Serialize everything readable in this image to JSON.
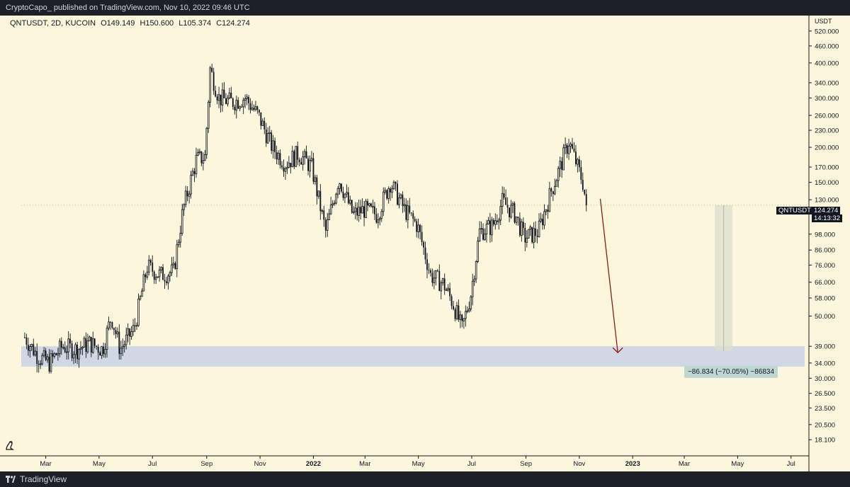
{
  "header": {
    "published": "CryptoCapo_ published on TradingView.com, Nov 10, 2022 09:46 UTC"
  },
  "footer": {
    "brand": "TradingView"
  },
  "legend": {
    "symbol": "QNTUSDT, 2D, KUCOIN",
    "open": "O149.149",
    "high": "H150.600",
    "low": "L105.374",
    "close": "C124.274"
  },
  "price_scale": {
    "currency": "USDT",
    "last_symbol": "QNTUSDT",
    "last_price": "124.274",
    "countdown": "14:13:32"
  },
  "measure": {
    "label": "−86.834 (−70.05%) −86834"
  },
  "colors": {
    "background": "#fcf7dc",
    "candle": "#131722",
    "support_zone": "#c3cfe6",
    "arrow": "#8b1a1a",
    "measure_zone": "#dcdfd0"
  },
  "chart_data": {
    "type": "candlestick",
    "scale": "log",
    "ylim": [
      17,
      570
    ],
    "x_ticks": [
      "Mar",
      "May",
      "Jul",
      "Sep",
      "Nov",
      "2022",
      "Mar",
      "May",
      "Jul",
      "Sep",
      "Nov",
      "2023",
      "Mar",
      "May",
      "Jul"
    ],
    "y_ticks": [
      "520.000",
      "460.000",
      "400.000",
      "340.000",
      "300.000",
      "260.000",
      "230.000",
      "200.000",
      "170.000",
      "150.000",
      "130.000",
      "98.000",
      "86.000",
      "76.000",
      "66.000",
      "58.000",
      "50.000",
      "39.000",
      "34.000",
      "30.000",
      "26.500",
      "23.500",
      "20.500",
      "18.100"
    ],
    "y_tick_values": [
      520,
      460,
      400,
      340,
      300,
      260,
      230,
      200,
      170,
      150,
      130,
      98,
      86,
      76,
      66,
      58,
      50,
      39,
      34,
      30,
      26.5,
      23.5,
      20.5,
      18.1
    ],
    "x_tick_dates": [
      "2021-03-01",
      "2021-05-01",
      "2021-07-01",
      "2021-09-01",
      "2021-11-01",
      "2022-01-01",
      "2022-03-01",
      "2022-05-01",
      "2022-07-01",
      "2022-09-01",
      "2022-11-01",
      "2023-01-01",
      "2023-03-01",
      "2023-05-01",
      "2023-07-01"
    ],
    "price_path": [
      [
        "2021-02-05",
        42
      ],
      [
        "2021-02-20",
        36
      ],
      [
        "2021-03-05",
        34
      ],
      [
        "2021-03-20",
        39
      ],
      [
        "2021-04-05",
        38
      ],
      [
        "2021-04-20",
        40
      ],
      [
        "2021-05-05",
        38
      ],
      [
        "2021-05-15",
        50
      ],
      [
        "2021-05-25",
        38
      ],
      [
        "2021-06-10",
        45
      ],
      [
        "2021-06-25",
        75
      ],
      [
        "2021-07-10",
        70
      ],
      [
        "2021-07-25",
        72
      ],
      [
        "2021-08-05",
        120
      ],
      [
        "2021-08-20",
        180
      ],
      [
        "2021-08-30",
        185
      ],
      [
        "2021-09-05",
        380
      ],
      [
        "2021-09-15",
        300
      ],
      [
        "2021-09-30",
        290
      ],
      [
        "2021-10-15",
        300
      ],
      [
        "2021-10-30",
        260
      ],
      [
        "2021-11-15",
        200
      ],
      [
        "2021-11-30",
        175
      ],
      [
        "2021-12-15",
        190
      ],
      [
        "2021-12-30",
        170
      ],
      [
        "2022-01-15",
        100
      ],
      [
        "2022-01-30",
        155
      ],
      [
        "2022-02-15",
        115
      ],
      [
        "2022-02-28",
        120
      ],
      [
        "2022-03-15",
        115
      ],
      [
        "2022-03-30",
        150
      ],
      [
        "2022-04-15",
        120
      ],
      [
        "2022-04-30",
        105
      ],
      [
        "2022-05-15",
        70
      ],
      [
        "2022-05-30",
        65
      ],
      [
        "2022-06-10",
        55
      ],
      [
        "2022-06-20",
        45
      ],
      [
        "2022-06-30",
        60
      ],
      [
        "2022-07-10",
        100
      ],
      [
        "2022-07-25",
        105
      ],
      [
        "2022-08-05",
        128
      ],
      [
        "2022-08-20",
        115
      ],
      [
        "2022-08-30",
        95
      ],
      [
        "2022-09-15",
        100
      ],
      [
        "2022-09-30",
        140
      ],
      [
        "2022-10-10",
        170
      ],
      [
        "2022-10-20",
        210
      ],
      [
        "2022-10-30",
        170
      ],
      [
        "2022-11-05",
        150
      ],
      [
        "2022-11-09",
        124.274
      ]
    ],
    "annotations": {
      "support_zone": [
        33,
        39
      ],
      "arrow": {
        "from": [
          "2022-11-25",
          131
        ],
        "to": [
          "2022-12-15",
          37
        ]
      },
      "measure": {
        "from_price": 124.274,
        "to_price": 37.44,
        "x_range": [
          "2023-04-05",
          "2023-04-25"
        ]
      }
    }
  }
}
